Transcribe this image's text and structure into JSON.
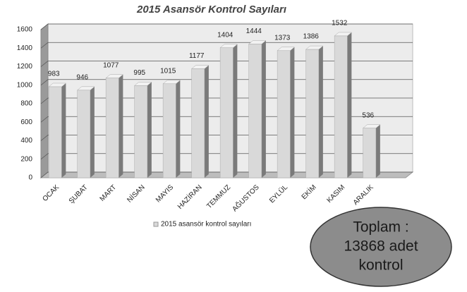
{
  "chart_data": {
    "type": "bar",
    "title": "2015 Asansör Kontrol Sayıları",
    "categories": [
      "OCAK",
      "ŞUBAT",
      "MART",
      "NİSAN",
      "MAYIS",
      "HAZİRAN",
      "TEMMUZ",
      "AĞUSTOS",
      "EYLÜL",
      "EKİM",
      "KASIM",
      "ARALIK"
    ],
    "series": [
      {
        "name": "2015 asansör kontrol sayıları",
        "color": "#d9d9d9",
        "values": [
          983,
          946,
          1077,
          995,
          1015,
          1177,
          1404,
          1444,
          1373,
          1386,
          1532,
          536
        ]
      }
    ],
    "ylim": [
      0,
      1600
    ],
    "yticks": [
      0,
      200,
      400,
      600,
      800,
      1000,
      1200,
      1400,
      1600
    ],
    "grid": true,
    "annotation": [
      "Toplam :",
      "13868 adet",
      "kontrol"
    ]
  }
}
